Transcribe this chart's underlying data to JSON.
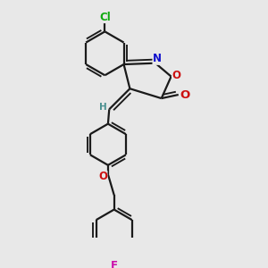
{
  "bg_color": "#e8e8e8",
  "bond_color": "#1a1a1a",
  "bond_width": 1.6,
  "atom_colors": {
    "C": "#1a1a1a",
    "H": "#4a9090",
    "N": "#1010cc",
    "O": "#cc1010",
    "Cl": "#10aa10",
    "F": "#cc10aa"
  },
  "font_size": 8.5,
  "fig_size": [
    3.0,
    3.0
  ],
  "dpi": 100
}
